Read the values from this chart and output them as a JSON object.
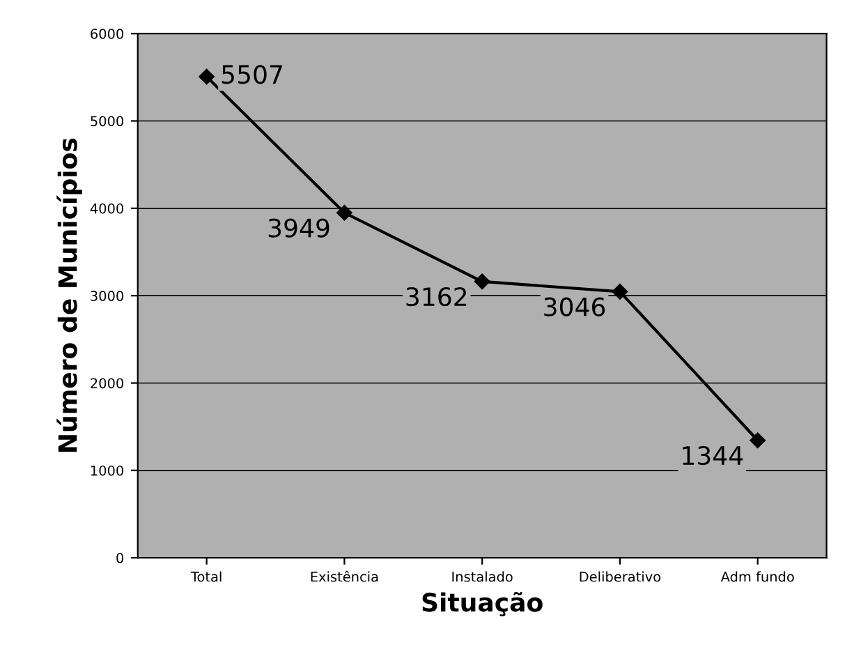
{
  "chart_data": {
    "type": "line",
    "xlabel": "Situação",
    "ylabel": "Número de Municípios",
    "categories": [
      "Total",
      "Existência",
      "Instalado",
      "Deliberativo",
      "Adm fundo"
    ],
    "series": [
      {
        "color": "#000000",
        "values": [
          5507,
          3949,
          3162,
          3046,
          1344
        ]
      }
    ],
    "data_labels": true,
    "marker": "diamond",
    "ylim": [
      0,
      6000
    ],
    "yticks": [
      0,
      1000,
      2000,
      3000,
      4000,
      5000,
      6000
    ],
    "grid": "y"
  }
}
